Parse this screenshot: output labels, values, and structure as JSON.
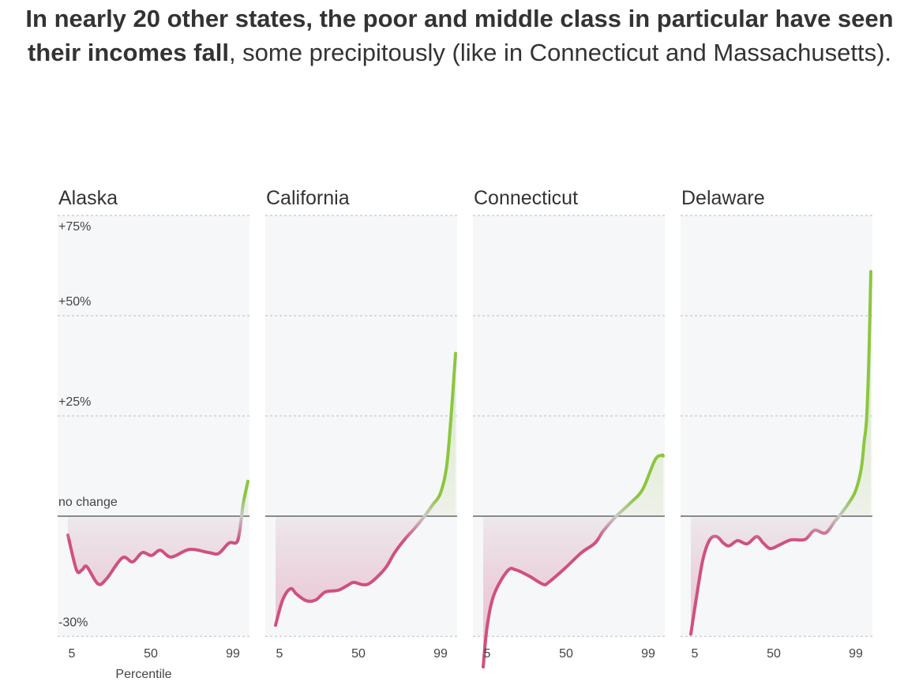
{
  "headline": {
    "bold": "In nearly 20 other states, the poor and middle class in particular have seen their incomes fall",
    "regular": ", some precipitously (like in Connecticut and Massachusetts)."
  },
  "chart_data": {
    "type": "area",
    "xlabel": "Percentile",
    "x_ticks": [
      "5",
      "50",
      "99"
    ],
    "xlim": [
      5,
      99
    ],
    "ylim": [
      -30,
      75
    ],
    "y_ticks": [
      {
        "value": 75,
        "label": "+75%"
      },
      {
        "value": 50,
        "label": "+50%"
      },
      {
        "value": 25,
        "label": "+25%"
      },
      {
        "value": 0,
        "label": "no change"
      },
      {
        "value": -30,
        "label": "-30%"
      }
    ],
    "colors": {
      "negative": "#d0507f",
      "positive": "#8cc63f",
      "neutral": "#c8c8c8",
      "panel_bg": "#f6f7f9",
      "zero_line": "#8a8a8a"
    },
    "panels": [
      {
        "title": "Alaska",
        "points": [
          [
            5,
            -4.7
          ],
          [
            9.5,
            -13.4
          ],
          [
            12.4,
            -13.4
          ],
          [
            14.9,
            -12.6
          ],
          [
            20.7,
            -16.9
          ],
          [
            25.2,
            -15.6
          ],
          [
            33.4,
            -10.4
          ],
          [
            38.8,
            -11.4
          ],
          [
            43.8,
            -9.1
          ],
          [
            48.7,
            -9.8
          ],
          [
            53.2,
            -8.5
          ],
          [
            59,
            -10.2
          ],
          [
            68.5,
            -8.3
          ],
          [
            78.8,
            -9.1
          ],
          [
            83.7,
            -9.3
          ],
          [
            89.1,
            -6.7
          ],
          [
            93.2,
            -6.5
          ],
          [
            94.9,
            -3.1
          ],
          [
            96.5,
            3
          ],
          [
            99,
            8.7
          ]
        ]
      },
      {
        "title": "California",
        "points": [
          [
            5,
            -27.2
          ],
          [
            8.7,
            -20.9
          ],
          [
            12.8,
            -18.1
          ],
          [
            16.1,
            -19.5
          ],
          [
            21.1,
            -21.1
          ],
          [
            26,
            -20.9
          ],
          [
            31,
            -18.9
          ],
          [
            37.6,
            -18.5
          ],
          [
            42.5,
            -17.3
          ],
          [
            45.8,
            -16.5
          ],
          [
            50.7,
            -17.1
          ],
          [
            54.9,
            -16.5
          ],
          [
            62.3,
            -13
          ],
          [
            67.2,
            -9.1
          ],
          [
            72.6,
            -5.7
          ],
          [
            77.5,
            -3.1
          ],
          [
            82.5,
            -0.2
          ],
          [
            87,
            2.8
          ],
          [
            91.1,
            5.7
          ],
          [
            94.4,
            12.6
          ],
          [
            96.9,
            26.4
          ],
          [
            99,
            40.6
          ]
        ]
      },
      {
        "title": "Connecticut",
        "points": [
          [
            5,
            -37.6
          ],
          [
            7.1,
            -27.4
          ],
          [
            10.7,
            -19.5
          ],
          [
            17.8,
            -13.6
          ],
          [
            22.1,
            -13.4
          ],
          [
            29.2,
            -15
          ],
          [
            36.3,
            -17
          ],
          [
            39.2,
            -16.5
          ],
          [
            47.7,
            -13
          ],
          [
            56.3,
            -9.1
          ],
          [
            63.4,
            -6.7
          ],
          [
            67.7,
            -3.7
          ],
          [
            74.1,
            -0.2
          ],
          [
            81.9,
            3.3
          ],
          [
            88.3,
            6.7
          ],
          [
            94.7,
            14
          ],
          [
            98.3,
            15.2
          ],
          [
            99,
            15
          ]
        ]
      },
      {
        "title": "Delaware",
        "points": [
          [
            5,
            -29.4
          ],
          [
            8.6,
            -18.2
          ],
          [
            11.5,
            -10.4
          ],
          [
            15,
            -5.8
          ],
          [
            18.6,
            -5.1
          ],
          [
            22.2,
            -6.8
          ],
          [
            25.1,
            -7.4
          ],
          [
            29.4,
            -6.1
          ],
          [
            34.4,
            -6.9
          ],
          [
            39.4,
            -5.1
          ],
          [
            43,
            -6.8
          ],
          [
            46.6,
            -8.1
          ],
          [
            51.6,
            -7.1
          ],
          [
            57.4,
            -5.9
          ],
          [
            64.6,
            -5.8
          ],
          [
            69.6,
            -3.5
          ],
          [
            75.3,
            -4.2
          ],
          [
            80.3,
            -1.2
          ],
          [
            82.5,
            0
          ],
          [
            87.5,
            3.3
          ],
          [
            91.1,
            6.4
          ],
          [
            94,
            11.9
          ],
          [
            95.5,
            18.5
          ],
          [
            96.8,
            24.4
          ],
          [
            98,
            40
          ],
          [
            99,
            61
          ]
        ]
      }
    ]
  }
}
